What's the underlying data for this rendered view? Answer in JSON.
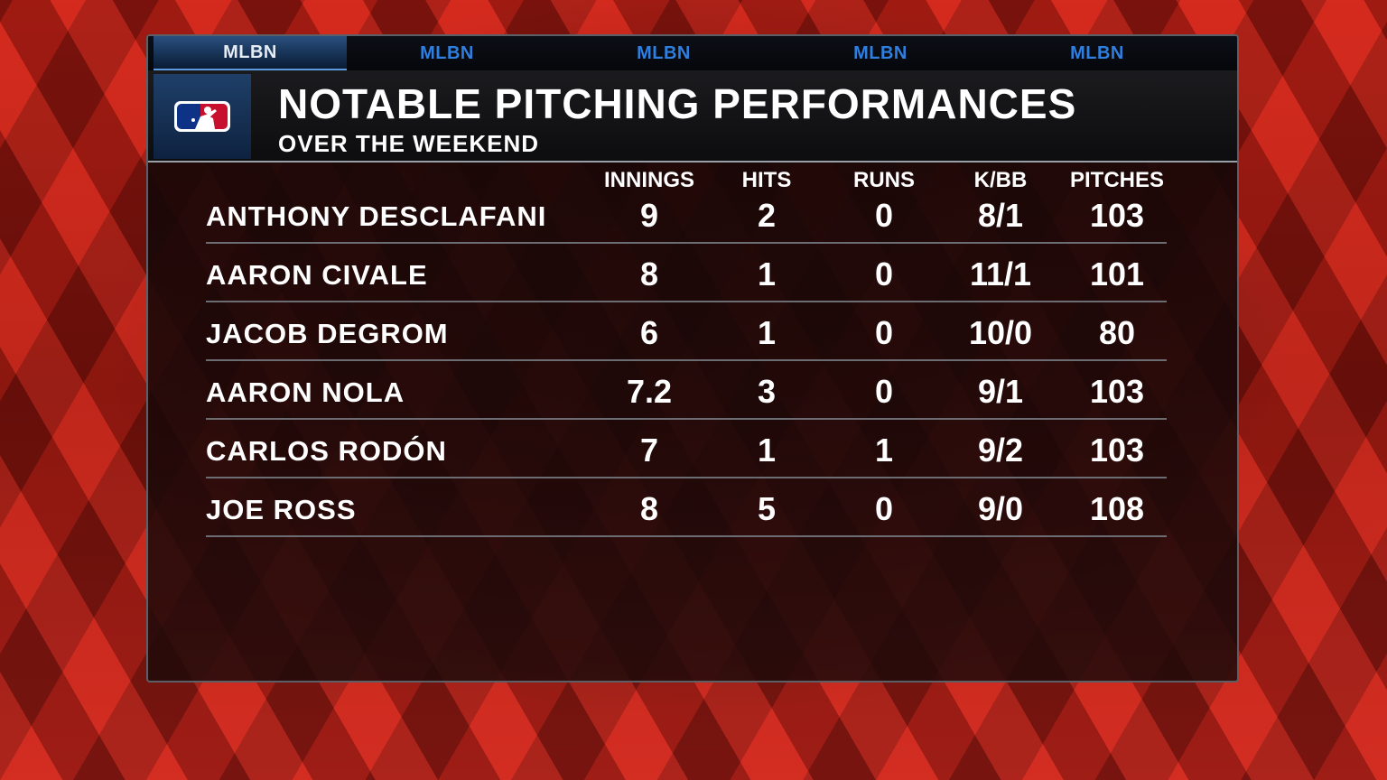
{
  "tabs": [
    "MLBN",
    "MLBN",
    "MLBN",
    "MLBN",
    "MLBN"
  ],
  "title": "NOTABLE PITCHING PERFORMANCES",
  "subtitle": "OVER THE WEEKEND",
  "colors": {
    "accent": "#2f7fe0",
    "logo_red": "#c8102e",
    "logo_blue": "#0e3386"
  },
  "table": {
    "headers": [
      "INNINGS",
      "HITS",
      "RUNS",
      "K/BB",
      "PITCHES"
    ],
    "rows": [
      {
        "name": "ANTHONY DESCLAFANI",
        "values": [
          "9",
          "2",
          "0",
          "8/1",
          "103"
        ]
      },
      {
        "name": "AARON CIVALE",
        "values": [
          "8",
          "1",
          "0",
          "11/1",
          "101"
        ]
      },
      {
        "name": "JACOB DEGROM",
        "values": [
          "6",
          "1",
          "0",
          "10/0",
          "80"
        ]
      },
      {
        "name": "AARON NOLA",
        "values": [
          "7.2",
          "3",
          "0",
          "9/1",
          "103"
        ]
      },
      {
        "name": "CARLOS RODÓN",
        "values": [
          "7",
          "1",
          "1",
          "9/2",
          "103"
        ]
      },
      {
        "name": "JOE ROSS",
        "values": [
          "8",
          "5",
          "0",
          "9/0",
          "108"
        ]
      }
    ]
  }
}
